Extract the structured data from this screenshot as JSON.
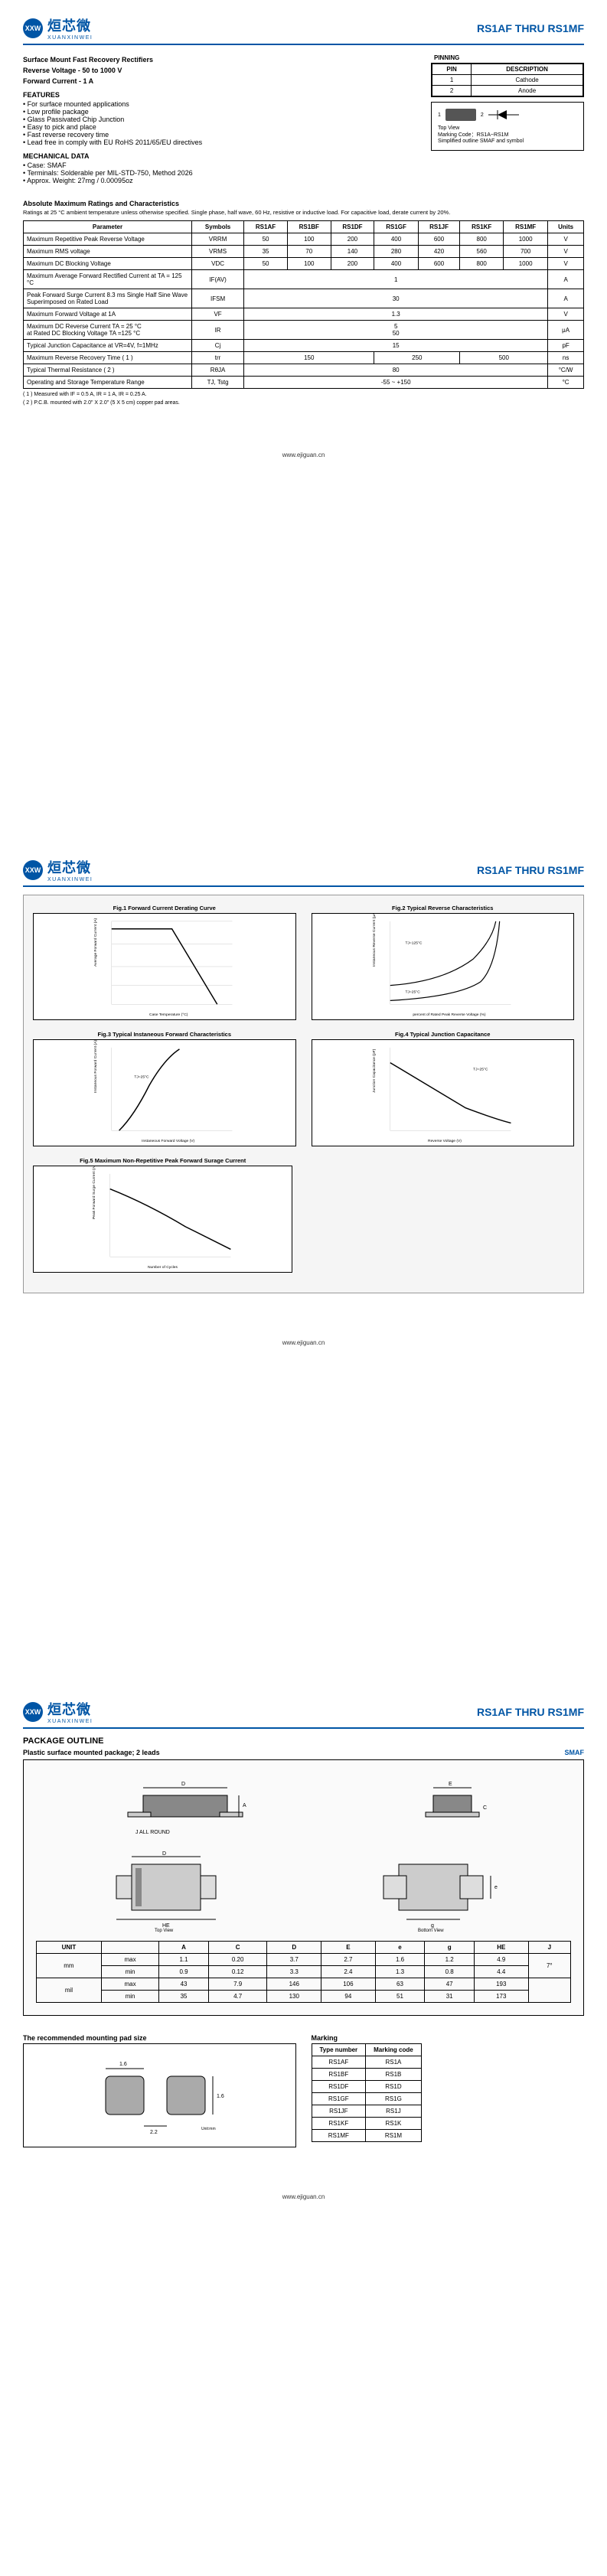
{
  "header": {
    "logo_cn": "烜芯微",
    "logo_en": "XUANXINWEI",
    "logo_abbr": "XXW",
    "title": "RS1AF THRU RS1MF"
  },
  "page1": {
    "h1": "Surface Mount Fast Recovery Rectifiers",
    "h2": "Reverse Voltage - 50 to 1000 V",
    "h3": "Forward Current - 1 A",
    "features_title": "FEATURES",
    "features": [
      "For surface mounted applications",
      "Low profile package",
      "Glass Passivated Chip Junction",
      "Easy to pick and place",
      "Fast reverse recovery time",
      "Lead free in comply with EU RoHS 2011/65/EU directives"
    ],
    "mech_title": "MECHANICAL DATA",
    "mech": [
      "Case: SMAF",
      "Terminals: Solderable per MIL-STD-750, Method 2026",
      "Approx. Weight: 27mg / 0.00095oz"
    ],
    "pinning_title": "PINNING",
    "pin_head": [
      "PIN",
      "DESCRIPTION"
    ],
    "pins": [
      [
        "1",
        "Cathode"
      ],
      [
        "2",
        "Anode"
      ]
    ],
    "symbol_notes": [
      "Top View",
      "Marking Code：RS1A~RS1M",
      "Simplified outline SMAF and symbol"
    ],
    "abs_title": "Absolute Maximum Ratings and Characteristics",
    "abs_note": "Ratings at 25 °C ambient temperature unless otherwise specified. Single phase, half wave, 60 Hz, resistive or inductive load. For capacitive load, derate current by 20%.",
    "spec_head": [
      "Parameter",
      "Symbols",
      "RS1AF",
      "RS1BF",
      "RS1DF",
      "RS1GF",
      "RS1JF",
      "RS1KF",
      "RS1MF",
      "Units"
    ],
    "spec_rows": [
      {
        "param": "Maximum Repetitive Peak Reverse Voltage",
        "sym": "VRRM",
        "vals": [
          "50",
          "100",
          "200",
          "400",
          "600",
          "800",
          "1000"
        ],
        "unit": "V"
      },
      {
        "param": "Maximum RMS voltage",
        "sym": "VRMS",
        "vals": [
          "35",
          "70",
          "140",
          "280",
          "420",
          "560",
          "700"
        ],
        "unit": "V"
      },
      {
        "param": "Maximum DC Blocking Voltage",
        "sym": "VDC",
        "vals": [
          "50",
          "100",
          "200",
          "400",
          "600",
          "800",
          "1000"
        ],
        "unit": "V"
      },
      {
        "param": "Maximum Average Forward Rectified Current at TA = 125 °C",
        "sym": "IF(AV)",
        "vals": [
          "1"
        ],
        "span": 7,
        "unit": "A"
      },
      {
        "param": "Peak Forward Surge Current 8.3 ms Single Half Sine Wave Superimposed on Rated Load",
        "sym": "IFSM",
        "vals": [
          "30"
        ],
        "span": 7,
        "unit": "A"
      },
      {
        "param": "Maximum Forward Voltage at 1A",
        "sym": "VF",
        "vals": [
          "1.3"
        ],
        "span": 7,
        "unit": "V"
      },
      {
        "param": "Maximum DC Reverse Current    TA = 25 °C\nat Rated DC Blocking Voltage    TA =125 °C",
        "sym": "IR",
        "vals": [
          "5\n50"
        ],
        "span": 7,
        "unit": "μA"
      },
      {
        "param": "Typical Junction Capacitance at VR=4V, f=1MHz",
        "sym": "Cj",
        "vals": [
          "15"
        ],
        "span": 7,
        "unit": "pF"
      },
      {
        "param": "Maximum Reverse Recovery Time ( 1 )",
        "sym": "trr",
        "vals": [
          "150",
          "",
          "",
          "250",
          "",
          "500",
          ""
        ],
        "colspans": [
          3,
          0,
          0,
          2,
          0,
          2,
          0
        ],
        "unit": "ns"
      },
      {
        "param": "Typical Thermal Resistance ( 2 )",
        "sym": "RθJA",
        "vals": [
          "80"
        ],
        "span": 7,
        "unit": "°C/W"
      },
      {
        "param": "Operating and Storage Temperature Range",
        "sym": "TJ, Tstg",
        "vals": [
          "-55 ~ +150"
        ],
        "span": 7,
        "unit": "°C"
      }
    ],
    "footnotes": [
      "( 1 ) Measured with IF = 0.5 A, IR = 1 A, IR = 0.25 A.",
      "( 2 ) P.C.B. mounted with 2.0\" X 2.0\" (5 X 5 cm) copper pad areas."
    ]
  },
  "page2": {
    "charts": [
      {
        "title": "Fig.1 Forward Current Derating Curve",
        "xlabel": "Case Temperature (°C)",
        "ylabel": "Average Forward Current (A)"
      },
      {
        "title": "Fig.2 Typical Reverse Characteristics",
        "xlabel": "percent of Rated Peak Reverse Voltage (%)",
        "ylabel": "Instaneous Reverse Current (μA)"
      },
      {
        "title": "Fig.3 Typical Instaneous Forward Characteristics",
        "xlabel": "Instaneous Forward Voltage (V)",
        "ylabel": "Instaneous Forward Current (A)"
      },
      {
        "title": "Fig.4 Typical Junction Capacitance",
        "xlabel": "Reverse Voltage (V)",
        "ylabel": "Junction Capacitance (pF)"
      },
      {
        "title": "Fig.5 Maximum Non-Repetitive Peak Forward Surage Current",
        "xlabel": "Number of Cycles",
        "ylabel": "Peak Forward Surge Current (A)"
      }
    ]
  },
  "page3": {
    "pkg_title": "PACKAGE OUTLINE",
    "pkg_sub": "Plastic surface mounted package; 2 leads",
    "pkg_type": "SMAF",
    "dim_head": [
      "UNIT",
      "",
      "A",
      "C",
      "D",
      "E",
      "e",
      "g",
      "HE",
      "J"
    ],
    "dim_rows": [
      [
        "mm",
        "max",
        "1.1",
        "0.20",
        "3.7",
        "2.7",
        "1.6",
        "1.2",
        "4.9",
        ""
      ],
      [
        "",
        "min",
        "0.9",
        "0.12",
        "3.3",
        "2.4",
        "1.3",
        "0.8",
        "4.4",
        "7°"
      ],
      [
        "mil",
        "max",
        "43",
        "7.9",
        "146",
        "106",
        "63",
        "47",
        "193",
        ""
      ],
      [
        "",
        "min",
        "35",
        "4.7",
        "130",
        "94",
        "51",
        "31",
        "173",
        ""
      ]
    ],
    "pad_title": "The recommended mounting pad size",
    "mark_title": "Marking",
    "mark_head": [
      "Type number",
      "Marking code"
    ],
    "mark_rows": [
      [
        "RS1AF",
        "RS1A"
      ],
      [
        "RS1BF",
        "RS1B"
      ],
      [
        "RS1DF",
        "RS1D"
      ],
      [
        "RS1GF",
        "RS1G"
      ],
      [
        "RS1JF",
        "RS1J"
      ],
      [
        "RS1KF",
        "RS1K"
      ],
      [
        "RS1MF",
        "RS1M"
      ]
    ]
  },
  "footer": "www.ejiguan.cn"
}
